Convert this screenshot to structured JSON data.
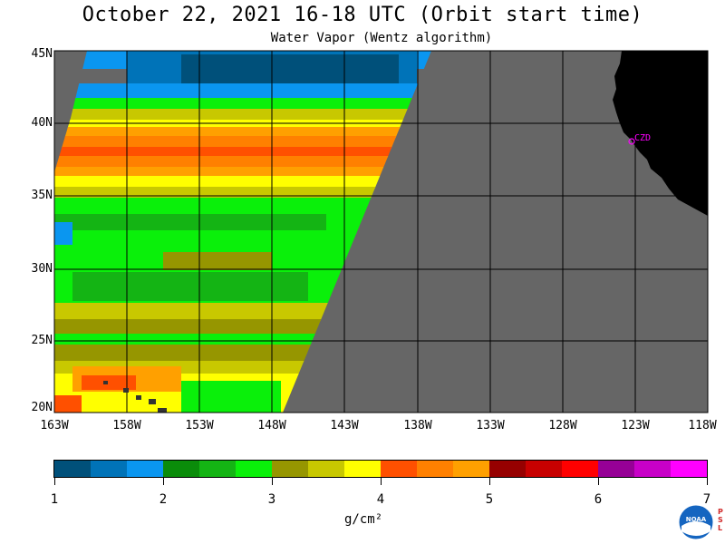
{
  "title": "October 22, 2021  16-18 UTC  (Orbit start time)",
  "subtitle": "Water Vapor (Wentz algorithm)",
  "lat_labels": [
    "45N",
    "40N",
    "35N",
    "30N",
    "25N",
    "20N"
  ],
  "lon_labels": [
    "163W",
    "158W",
    "153W",
    "148W",
    "143W",
    "138W",
    "133W",
    "128W",
    "123W",
    "118W"
  ],
  "station_label": "CZD",
  "colorbar": {
    "ticks": [
      "1",
      "2",
      "3",
      "4",
      "5",
      "6",
      "7"
    ],
    "units": "g/cm²",
    "colors": [
      "#00507a",
      "#0073b8",
      "#0a96f0",
      "#0a8c0a",
      "#14b414",
      "#0af00a",
      "#969600",
      "#c8c800",
      "#ffff00",
      "#ff5000",
      "#ff8000",
      "#ffa000",
      "#960000",
      "#c80000",
      "#ff0000",
      "#960096",
      "#c800c8",
      "#ff00ff"
    ]
  },
  "logo_text": "NOAA",
  "psl_text": "PSL",
  "colors": {
    "no_data": "#666666",
    "land": "#000000",
    "grid": "#000000"
  }
}
